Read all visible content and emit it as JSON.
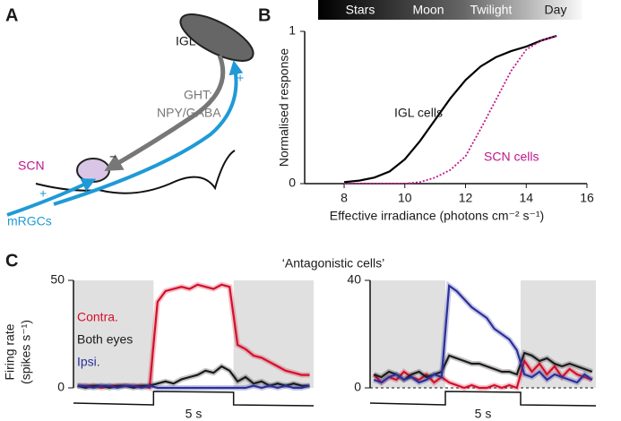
{
  "panel_labels": [
    "A",
    "B",
    "C"
  ],
  "diagram": {
    "igl": "IGL",
    "ght": [
      "GHT:",
      "NPY/GABA"
    ],
    "scn": "SCN",
    "minus": "−",
    "plus_top": "+",
    "plus_bottom": "+",
    "mrgcs": "mRGCs"
  },
  "light_bar": [
    "Stars",
    "Moon",
    "Twilight",
    "Day"
  ],
  "chart_data": [
    {
      "type": "line",
      "x": [
        8,
        8.5,
        9,
        9.5,
        10,
        10.5,
        11,
        11.5,
        12,
        12.5,
        13,
        13.5,
        14,
        14.5,
        15
      ],
      "xlabel": "Effective irradiance (photons cm⁻² s⁻¹)",
      "ylabel": "Normalised response",
      "xlim": [
        6.7,
        16
      ],
      "ylim": [
        0,
        1
      ],
      "xticks": [
        8,
        10,
        12,
        14,
        16
      ],
      "yticks": [
        0,
        1
      ],
      "series": [
        {
          "name": "IGL cells",
          "color": "#000000",
          "dashed": false,
          "values": [
            0.01,
            0.02,
            0.04,
            0.08,
            0.16,
            0.28,
            0.42,
            0.56,
            0.68,
            0.77,
            0.83,
            0.87,
            0.9,
            0.94,
            0.97
          ]
        },
        {
          "name": "SCN cells",
          "color": "#c0168a",
          "dashed": true,
          "values": [
            0,
            0,
            0,
            0,
            0,
            0.01,
            0.04,
            0.09,
            0.18,
            0.36,
            0.55,
            0.74,
            0.88,
            0.94,
            0.97
          ]
        }
      ]
    },
    {
      "type": "line",
      "title": "‘Antagonistic cells’",
      "ylabel": [
        "Firing rate",
        "(spikes s⁻¹)"
      ],
      "scalebar_label": "5 s",
      "ylim": [
        0,
        50
      ],
      "yticks": [
        0,
        50
      ],
      "series": [
        {
          "name": "Contra.",
          "color": "#d40f2a",
          "values": [
            1,
            1,
            1,
            0,
            1,
            1,
            1,
            1,
            1,
            0,
            40,
            45,
            46,
            47,
            46,
            48,
            47,
            46,
            48,
            47,
            20,
            18,
            15,
            14,
            12,
            10,
            8,
            7,
            6,
            6
          ]
        },
        {
          "name": "Both eyes",
          "color": "#1a1a1a",
          "values": [
            1,
            0,
            1,
            1,
            0,
            1,
            1,
            0,
            1,
            1,
            2,
            3,
            2,
            4,
            5,
            6,
            8,
            7,
            10,
            8,
            3,
            5,
            2,
            3,
            1,
            2,
            1,
            2,
            1,
            1
          ]
        },
        {
          "name": "Ipsi.",
          "color": "#2b2f9a",
          "values": [
            1,
            1,
            0,
            1,
            1,
            0,
            1,
            1,
            0,
            1,
            0,
            0,
            0,
            0,
            0,
            0,
            0,
            0,
            0,
            0,
            0,
            0,
            1,
            0,
            1,
            0,
            1,
            0,
            0,
            1
          ]
        }
      ]
    },
    {
      "type": "line",
      "scalebar_label": "5 s",
      "ylim": [
        0,
        40
      ],
      "yticks": [
        0,
        40
      ],
      "series": [
        {
          "color": "#d40f2a",
          "values": [
            5,
            2,
            4,
            3,
            6,
            4,
            3,
            5,
            2,
            4,
            2,
            1,
            0,
            1,
            0,
            0,
            1,
            0,
            1,
            0,
            10,
            6,
            9,
            5,
            8,
            4,
            7,
            5,
            4,
            3
          ]
        },
        {
          "color": "#1a1a1a",
          "values": [
            5,
            4,
            6,
            5,
            3,
            5,
            6,
            4,
            5,
            6,
            12,
            11,
            10,
            9,
            9,
            8,
            7,
            6,
            6,
            5,
            13,
            12,
            10,
            11,
            9,
            8,
            9,
            8,
            7,
            6
          ]
        },
        {
          "color": "#2b2f9a",
          "values": [
            3,
            2,
            4,
            5,
            3,
            4,
            2,
            3,
            5,
            4,
            38,
            36,
            33,
            30,
            28,
            26,
            22,
            20,
            18,
            14,
            5,
            4,
            6,
            3,
            5,
            4,
            3,
            2,
            5,
            3
          ]
        }
      ]
    }
  ]
}
